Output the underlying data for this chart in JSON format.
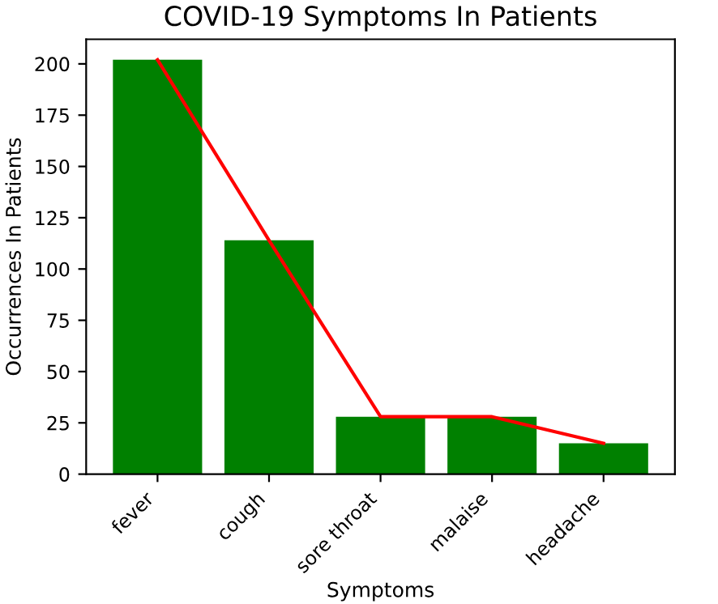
{
  "chart_data": {
    "type": "bar",
    "title": "COVID-19 Symptoms In Patients",
    "xlabel": "Symptoms",
    "ylabel": "Occurrences In Patients",
    "categories": [
      "fever",
      "cough",
      "sore throat",
      "malaise",
      "headache"
    ],
    "series": [
      {
        "color": "#008000",
        "values": [
          202,
          114,
          28,
          28,
          15
        ]
      },
      {
        "type": "line",
        "color": "#ff0000",
        "values": [
          202,
          114,
          28,
          28,
          15
        ]
      }
    ],
    "ylim": [
      0,
      212
    ],
    "yticks": [
      0,
      25,
      50,
      75,
      100,
      125,
      150,
      175,
      200
    ],
    "grid": false,
    "marker": "none"
  }
}
